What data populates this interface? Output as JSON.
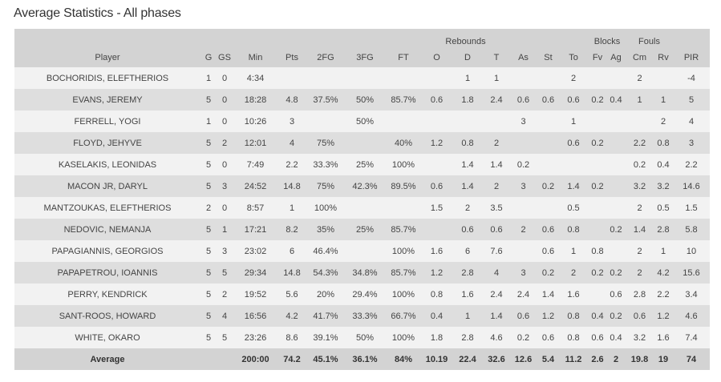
{
  "page": {
    "title": "Average Statistics - All phases"
  },
  "table": {
    "group_headers": {
      "rebounds": "Rebounds",
      "blocks": "Blocks",
      "fouls": "Fouls"
    },
    "columns": [
      "Player",
      "G",
      "GS",
      "Min",
      "Pts",
      "2FG",
      "3FG",
      "FT",
      "O",
      "D",
      "T",
      "As",
      "St",
      "To",
      "Fv",
      "Ag",
      "Cm",
      "Rv",
      "PIR"
    ],
    "rows": [
      [
        "BOCHORIDIS, ELEFTHERIOS",
        "1",
        "0",
        "4:34",
        "",
        "",
        "",
        "",
        "",
        "1",
        "1",
        "",
        "",
        "2",
        "",
        "",
        "2",
        "",
        "-4"
      ],
      [
        "EVANS, JEREMY",
        "5",
        "0",
        "18:28",
        "4.8",
        "37.5%",
        "50%",
        "85.7%",
        "0.6",
        "1.8",
        "2.4",
        "0.6",
        "0.6",
        "0.6",
        "0.2",
        "0.4",
        "1",
        "1",
        "5"
      ],
      [
        "FERRELL, YOGI",
        "1",
        "0",
        "10:26",
        "3",
        "",
        "50%",
        "",
        "",
        "",
        "",
        "3",
        "",
        "1",
        "",
        "",
        "",
        "2",
        "4"
      ],
      [
        "FLOYD, JEHYVE",
        "5",
        "2",
        "12:01",
        "4",
        "75%",
        "",
        "40%",
        "1.2",
        "0.8",
        "2",
        "",
        "",
        "0.6",
        "0.2",
        "",
        "2.2",
        "0.8",
        "3"
      ],
      [
        "KASELAKIS, LEONIDAS",
        "5",
        "0",
        "7:49",
        "2.2",
        "33.3%",
        "25%",
        "100%",
        "",
        "1.4",
        "1.4",
        "0.2",
        "",
        "",
        "",
        "",
        "0.2",
        "0.4",
        "2.2"
      ],
      [
        "MACON JR, DARYL",
        "5",
        "3",
        "24:52",
        "14.8",
        "75%",
        "42.3%",
        "89.5%",
        "0.6",
        "1.4",
        "2",
        "3",
        "0.2",
        "1.4",
        "0.2",
        "",
        "3.2",
        "3.2",
        "14.6"
      ],
      [
        "MANTZOUKAS, ELEFTHERIOS",
        "2",
        "0",
        "8:57",
        "1",
        "100%",
        "",
        "",
        "1.5",
        "2",
        "3.5",
        "",
        "",
        "0.5",
        "",
        "",
        "2",
        "0.5",
        "1.5"
      ],
      [
        "NEDOVIC, NEMANJA",
        "5",
        "1",
        "17:21",
        "8.2",
        "35%",
        "25%",
        "85.7%",
        "",
        "0.6",
        "0.6",
        "2",
        "0.6",
        "0.8",
        "",
        "0.2",
        "1.4",
        "2.8",
        "5.8"
      ],
      [
        "PAPAGIANNIS, GEORGIOS",
        "5",
        "3",
        "23:02",
        "6",
        "46.4%",
        "",
        "100%",
        "1.6",
        "6",
        "7.6",
        "",
        "0.6",
        "1",
        "0.8",
        "",
        "2",
        "1",
        "10"
      ],
      [
        "PAPAPETROU, IOANNIS",
        "5",
        "5",
        "29:34",
        "14.8",
        "54.3%",
        "34.8%",
        "85.7%",
        "1.2",
        "2.8",
        "4",
        "3",
        "0.2",
        "2",
        "0.2",
        "0.2",
        "2",
        "4.2",
        "15.6"
      ],
      [
        "PERRY, KENDRICK",
        "5",
        "2",
        "19:52",
        "5.6",
        "20%",
        "29.4%",
        "100%",
        "0.8",
        "1.6",
        "2.4",
        "2.4",
        "1.4",
        "1.6",
        "",
        "0.6",
        "2.8",
        "2.2",
        "3.4"
      ],
      [
        "SANT-ROOS, HOWARD",
        "5",
        "4",
        "16:56",
        "4.2",
        "41.7%",
        "33.3%",
        "66.7%",
        "0.4",
        "1",
        "1.4",
        "0.6",
        "1.2",
        "0.8",
        "0.4",
        "0.2",
        "0.6",
        "1.2",
        "4.6"
      ],
      [
        "WHITE, OKARO",
        "5",
        "5",
        "23:26",
        "8.6",
        "39.1%",
        "50%",
        "100%",
        "1.8",
        "2.8",
        "4.6",
        "0.2",
        "0.6",
        "0.8",
        "0.6",
        "0.4",
        "3.2",
        "1.6",
        "7.4"
      ]
    ],
    "footer": [
      "Average",
      "",
      "",
      "200:00",
      "74.2",
      "45.1%",
      "36.1%",
      "84%",
      "10.19",
      "22.4",
      "32.6",
      "12.6",
      "5.4",
      "11.2",
      "2.6",
      "2",
      "19.8",
      "19",
      "74"
    ]
  }
}
